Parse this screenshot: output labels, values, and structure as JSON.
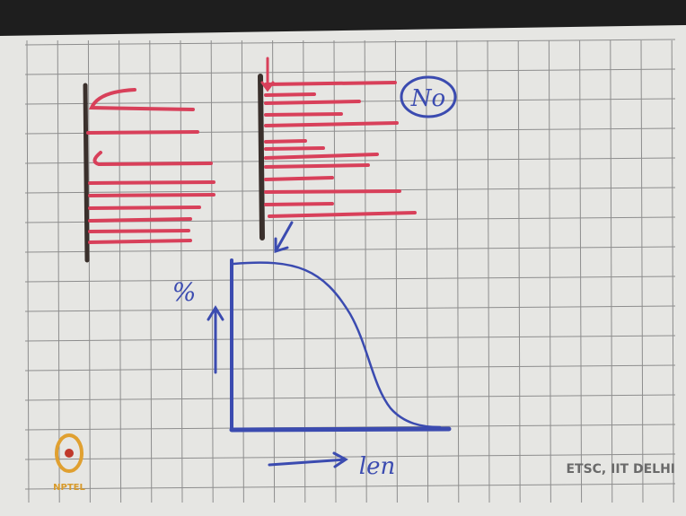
{
  "annotations": {
    "circled_word": "No",
    "y_axis_symbol": "%",
    "x_axis_label": "len"
  },
  "watermark": "ETSC, IIT DELHI",
  "logo_text": "NPTEL"
}
